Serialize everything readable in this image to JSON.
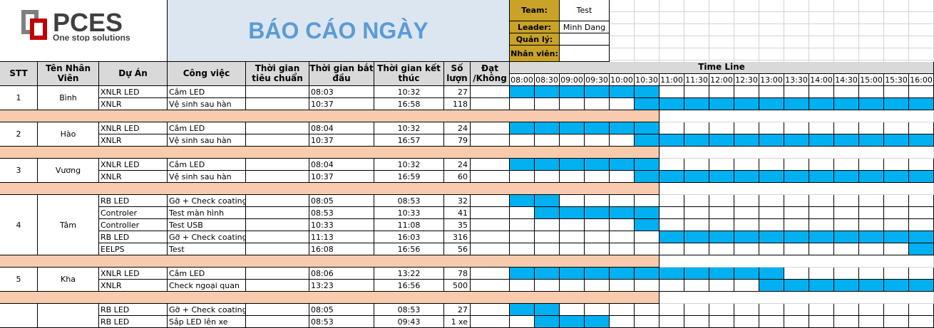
{
  "colors": {
    "bar": "#00b0f0",
    "separator": "#f8cbad",
    "title_bg": "#dce6f1",
    "header_bg": "#d9d9d9",
    "info_label_bg": "#c9a227",
    "title_text": "#5b9bd5"
  },
  "logo": {
    "brand": "PCES",
    "tagline": "One stop solutions"
  },
  "title": "BÁO CÁO NGÀY",
  "info": {
    "team_label": "Team:",
    "team_value": "Test",
    "leader_label": "Leader:",
    "leader_value": "Minh Dang",
    "manager_label": "Quản lý:",
    "manager_value": "",
    "staff_label": "Nhân viên:",
    "staff_value": ""
  },
  "headers": {
    "stt": "STT",
    "name": "Tên Nhân Viên",
    "project": "Dự Án",
    "task": "Công việc",
    "std_time": "Thời gian tiêu chuẩn",
    "start": "Thời gian bắt đầu",
    "end": "Thời gian kết thúc",
    "qty": "Số lượn",
    "pass": "Đạt /Không",
    "timeline": "Time Line"
  },
  "times": [
    "08:00",
    "08:30",
    "09:00",
    "09:30",
    "10:00",
    "10:30",
    "11:00",
    "11:30",
    "12:00",
    "12:30",
    "13:00",
    "13:30",
    "14:00",
    "14:30",
    "15:00",
    "15:30",
    "16:00"
  ],
  "groups": [
    {
      "stt": "1",
      "name": "Bình",
      "rows": [
        {
          "project": "XNLR LED",
          "task": "Cắm LED",
          "start": "08:03",
          "end": "10:32",
          "qty": "27",
          "bars": [
            0,
            5
          ]
        },
        {
          "project": "XNLR",
          "task": "Vệ sinh sau hàn",
          "start": "10:37",
          "end": "16:58",
          "qty": "118",
          "bars": [
            5,
            16
          ]
        }
      ]
    },
    {
      "stt": "2",
      "name": "Hào",
      "rows": [
        {
          "project": "XNLR LED",
          "task": "Cắm LED",
          "start": "08:04",
          "end": "10:32",
          "qty": "24",
          "bars": [
            0,
            5
          ]
        },
        {
          "project": "XNLR",
          "task": "Vệ sinh sau hàn",
          "start": "10:37",
          "end": "16:57",
          "qty": "79",
          "bars": [
            5,
            16
          ]
        }
      ]
    },
    {
      "stt": "3",
      "name": "Vương",
      "rows": [
        {
          "project": "XNLR LED",
          "task": "Cắm LED",
          "start": "08:04",
          "end": "10:32",
          "qty": "24",
          "bars": [
            0,
            5
          ]
        },
        {
          "project": "XNLR",
          "task": "Vệ sinh sau hàn",
          "start": "10:37",
          "end": "16:59",
          "qty": "60",
          "bars": [
            5,
            16
          ]
        }
      ]
    },
    {
      "stt": "4",
      "name": "Tâm",
      "rows": [
        {
          "project": "RB LED",
          "task": "Gỡ + Check coating",
          "start": "08:05",
          "end": "08:53",
          "qty": "32",
          "bars": [
            0,
            1
          ]
        },
        {
          "project": "Controler",
          "task": "Test màn hình",
          "start": "08:53",
          "end": "10:33",
          "qty": "41",
          "bars": [
            1,
            5
          ]
        },
        {
          "project": "Controller",
          "task": "Test USB",
          "start": "10:33",
          "end": "11:08",
          "qty": "35",
          "bars": [
            5,
            5
          ]
        },
        {
          "project": "RB LED",
          "task": "Gỡ + Check coating",
          "start": "11:13",
          "end": "16:03",
          "qty": "316",
          "bars": [
            6,
            16
          ]
        },
        {
          "project": "EELPS",
          "task": "Test",
          "start": "16:08",
          "end": "16:56",
          "qty": "56",
          "bars": [
            16,
            16
          ]
        }
      ]
    },
    {
      "stt": "5",
      "name": "Kha",
      "rows": [
        {
          "project": "XNLR LED",
          "task": "Cắm LED",
          "start": "08:06",
          "end": "13:22",
          "qty": "78",
          "bars": [
            0,
            10
          ]
        },
        {
          "project": "XNLR",
          "task": "Check ngoại quan",
          "start": "13:23",
          "end": "16:56",
          "qty": "500",
          "bars": [
            10,
            16
          ]
        }
      ]
    },
    {
      "stt": "",
      "name": "",
      "rows": [
        {
          "project": "RB LED",
          "task": "Gỡ + Check coating",
          "start": "08:05",
          "end": "08:53",
          "qty": "27",
          "bars": [
            0,
            1
          ]
        },
        {
          "project": "RB LED",
          "task": "Sắp LED lên xe",
          "start": "08:53",
          "end": "09:43",
          "qty": "1 xe",
          "bars": [
            1,
            3
          ]
        }
      ]
    }
  ]
}
